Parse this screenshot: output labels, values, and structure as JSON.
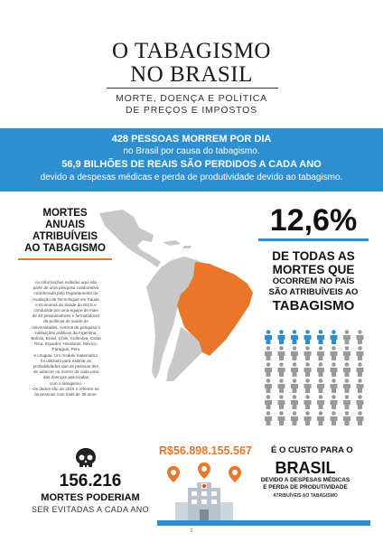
{
  "header": {
    "title_line1": "O TABAGISMO",
    "title_line2": "NO BRASIL",
    "subtitle_line1": "MORTE, DOENÇA E POLÍTICA",
    "subtitle_line2": "DE PREÇOS E IMPOSTOS"
  },
  "banner": {
    "line1_bold": "428 PESSOAS MORREM POR DIA",
    "line1_regular": "no Brasil por causa do tabagismo.",
    "line2_bold": "56,9 BILHÕES DE REAIS SÃO PERDIDOS A CADA ANO",
    "line2_regular": "devido a despesas médicas e perda de produtividade devido ao tabagismo."
  },
  "attributable": {
    "heading_line1": "MORTES",
    "heading_line2": "ANUAIS",
    "heading_line3": "ATRIBUÍVEIS",
    "heading_line4": "AO TABAGISMO",
    "info_lines": [
      "As informações exibidas aqui são",
      "parte de uma pesquisa colaborativa",
      "coordenada pelo Departamento de",
      "Avaliação de Tecnologias em Saúde",
      "e Economia da Saúde do IECS e",
      "conduzida por uma equipe de mais",
      "de 40 pesquisadores e formuladores",
      "de políticas de saúde de",
      "universidades, centros de pesquisa e",
      "instituições públicas da Argentina,",
      "Bolívia, Brasil, Chile, Colômbia, Costa",
      "Rica, Equador, Honduras, México,",
      "Paraguai, Peru",
      "e Uruguai. Um modelo matemático",
      "foi utilizado para estimar as",
      "probabilidades que as pessoas têm",
      "de adoecer ou morrer de cada uma",
      "das doenças associadas",
      "com o tabagismo.",
      "Os dados são de 2015 e referem-se",
      "às pessoas com mais de 35 anos."
    ]
  },
  "stat": {
    "percent": "12,6%",
    "line1": "DE TODAS AS",
    "line2": "MORTES QUE",
    "line3": "OCORREM NO PAÍS",
    "line4": "SÃO ATRIBUÍVEIS AO",
    "line5": "TABAGISMO",
    "highlighted_people": 6,
    "total_people": 48
  },
  "bottom_left": {
    "number": "156.216",
    "line1": "MORTES PODERIAM",
    "line2": "SER EVITADAS A CADA ANO"
  },
  "bottom_right": {
    "amount": "R$56.898.155.567",
    "custo": "É O CUSTO PARA O",
    "brasil": "BRASIL",
    "devido_line1": "DEVIDO A DESPESAS MÉDICAS",
    "devido_line2": "E PERDA DE PRODUTIVIDADE",
    "atribuiveis": "ATRIBUÍVEIS AO TABAGISMO"
  },
  "page_number": "1",
  "colors": {
    "accent_blue": "#2e8fd0",
    "accent_orange": "#e8772a",
    "map_gray": "#c8c8c8",
    "people_gray": "#9a9a9a"
  },
  "icons": {
    "skull": "skull-icon",
    "person": "person-icon",
    "hospital": "hospital-icon",
    "location_pin": "map-pin-icon"
  }
}
